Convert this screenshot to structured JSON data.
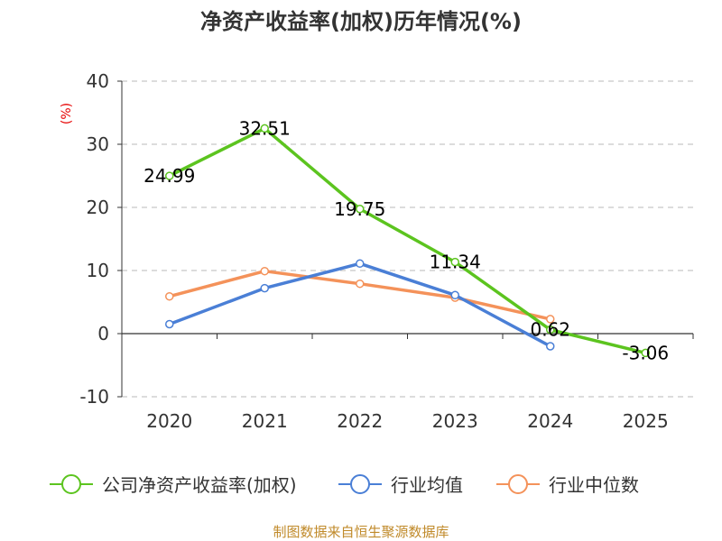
{
  "chart_data": {
    "type": "line",
    "title": "净资产收益率(加权)历年情况(%)",
    "ylabel": "(%)",
    "xlabel": "",
    "categories": [
      "2020",
      "2021",
      "2022",
      "2023",
      "2024",
      "2025"
    ],
    "ylim": [
      -10,
      40
    ],
    "yticks": [
      40,
      30,
      20,
      10,
      0,
      -10
    ],
    "grid": true,
    "legend_position": "bottom",
    "series": [
      {
        "name": "公司净资产收益率(加权)",
        "color": "#5cc41f",
        "values": [
          24.99,
          32.51,
          19.75,
          11.34,
          0.62,
          -3.06
        ],
        "labels": [
          "24.99",
          "32.51",
          "19.75",
          "11.34",
          "0.62",
          "-3.06"
        ]
      },
      {
        "name": "行业均值",
        "color": "#4a7fd6",
        "values": [
          1.5,
          7.2,
          11.1,
          6.1,
          -2.0,
          null
        ]
      },
      {
        "name": "行业中位数",
        "color": "#f4925a",
        "values": [
          5.9,
          9.9,
          7.9,
          5.7,
          2.3,
          null
        ]
      }
    ],
    "source": "制图数据来自恒生聚源数据库"
  }
}
